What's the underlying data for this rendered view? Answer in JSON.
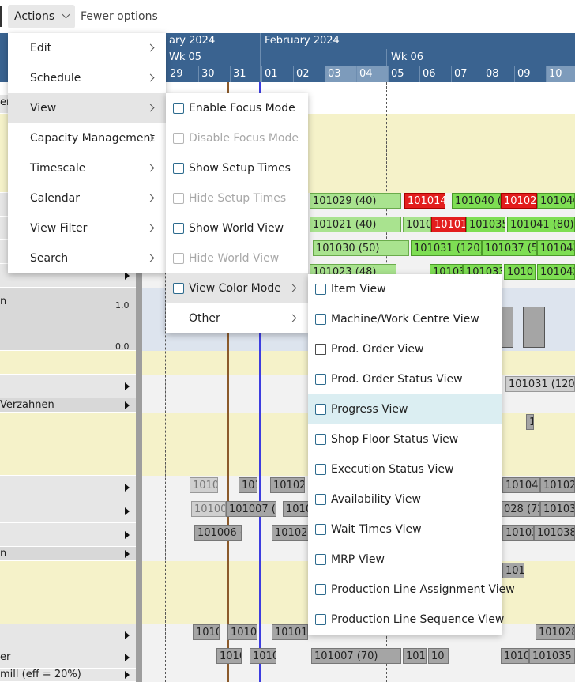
{
  "toolbar": {
    "actions_label": "Actions",
    "fewer_options_label": "Fewer options"
  },
  "gantt_header": {
    "months": [
      "ary 2024",
      "February 2024"
    ],
    "weeks": [
      "Wk 05",
      "Wk 06"
    ],
    "days": [
      "29",
      "30",
      "31",
      "01",
      "02",
      "03",
      "04",
      "05",
      "06",
      "07",
      "08",
      "09",
      "10"
    ]
  },
  "resources": {
    "row_er": "er",
    "row_n1": "n",
    "row_verzahnen": "Verzahnen",
    "row_n2": "n",
    "row_er2": "er",
    "row_mill": "mill (eff = 20%)"
  },
  "chart_axis": {
    "top": "1.0",
    "bottom": "0.0"
  },
  "bars": {
    "b1": "101029 (40)",
    "b2": "101014",
    "b3": "101040 (50",
    "b4": "101022",
    "b5": "101046",
    "b6": "101021 (40)",
    "b7": "1010",
    "b8": "10101",
    "b9": "101035",
    "b10": "101041 (80)",
    "b11": "101030 (50)",
    "b12": "101031 (120)",
    "b13": "101037 (50",
    "b14": "101043",
    "b15": "101023 (48)",
    "b16": "10103",
    "b17": "101033",
    "b18": "1010",
    "b19": "101042 (1",
    "b20": "101031 (120)",
    "b21": "10100",
    "b22": "101",
    "b23": "10102",
    "b24": "101040",
    "b25": "101022",
    "b26": "10100",
    "b27": "101007 (7",
    "b28": "1010",
    "b29": "028 (72)",
    "b30": "101030",
    "b31": "101006 (",
    "b32": "101024",
    "b33": "10103",
    "b34": "101038 (",
    "b35": "1010",
    "b36": "1010",
    "b37": "10101",
    "b38": "101028",
    "b39": "1010",
    "b40": "1010",
    "b41": "101007 (70)",
    "b42": "1010",
    "b43": "10",
    "b44": "1010",
    "b45": "101035 (",
    "b46": "1010 1010 1010",
    "b47": "1(",
    "b48": "101",
    "b49": "1010",
    "b50": "101"
  },
  "menu_actions": [
    {
      "label": "Edit"
    },
    {
      "label": "Schedule"
    },
    {
      "label": "View"
    },
    {
      "label": "Capacity Management"
    },
    {
      "label": "Timescale"
    },
    {
      "label": "Calendar"
    },
    {
      "label": "View Filter"
    },
    {
      "label": "Search"
    }
  ],
  "menu_view": [
    {
      "label": "Enable Focus Mode",
      "icon": "focus-icon",
      "enabled": true
    },
    {
      "label": "Disable Focus Mode",
      "icon": "focus-icon",
      "enabled": false
    },
    {
      "label": "Show Setup Times",
      "icon": "setup-times-icon",
      "enabled": true
    },
    {
      "label": "Hide Setup Times",
      "icon": "setup-times-icon",
      "enabled": false
    },
    {
      "label": "Show World View",
      "icon": "world-view-icon",
      "enabled": true
    },
    {
      "label": "Hide World View",
      "icon": "world-view-icon",
      "enabled": false
    },
    {
      "label": "View Color Mode",
      "icon": "color-mode-icon",
      "enabled": true
    },
    {
      "label": "Other",
      "enabled": true
    }
  ],
  "menu_color_mode": [
    {
      "label": "Item View",
      "icon": "item-icon"
    },
    {
      "label": "Machine/Work Centre View",
      "icon": "machine-icon"
    },
    {
      "label": "Prod. Order View",
      "icon": "prod-order-icon"
    },
    {
      "label": "Prod. Order Status View",
      "icon": "prod-order-status-icon"
    },
    {
      "label": "Progress View",
      "icon": "progress-icon"
    },
    {
      "label": "Shop Floor Status View",
      "icon": "shop-floor-icon"
    },
    {
      "label": "Execution Status View",
      "icon": "execution-icon"
    },
    {
      "label": "Availability View",
      "icon": "availability-icon"
    },
    {
      "label": "Wait Times View",
      "icon": "wait-times-icon"
    },
    {
      "label": "MRP View",
      "icon": "mrp-icon"
    },
    {
      "label": "Production Line Assignment View",
      "icon": "line-assignment-icon"
    },
    {
      "label": "Production Line Sequence View",
      "icon": "line-sequence-icon"
    }
  ],
  "colors": {
    "header": "#3a6390",
    "hover": "#dbeef2",
    "bar_green": "#7ede53",
    "bar_red": "#e31d1d",
    "bar_grey": "#a5a5a5"
  }
}
